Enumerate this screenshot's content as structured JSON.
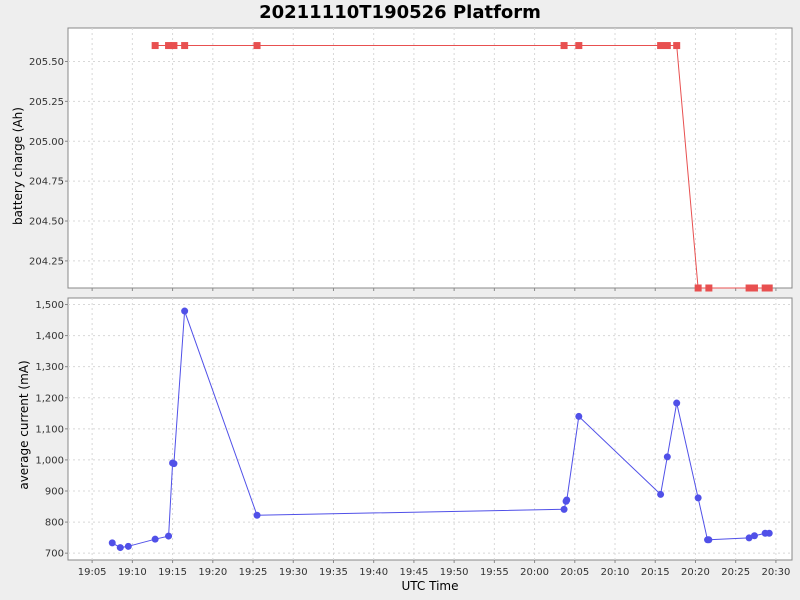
{
  "chart_data": {
    "title": "20211110T190526 Platform",
    "xlabel": "UTC Time",
    "x_range": [
      "19:02",
      "20:32"
    ],
    "x_ticks": [
      "19:05",
      "19:10",
      "19:15",
      "19:20",
      "19:25",
      "19:30",
      "19:35",
      "19:40",
      "19:45",
      "19:50",
      "19:55",
      "20:00",
      "20:05",
      "20:10",
      "20:15",
      "20:20",
      "20:25",
      "20:30"
    ],
    "grid": true,
    "panels": [
      {
        "type": "line",
        "ylabel": "battery charge (Ah)",
        "ylim": [
          204.08,
          205.71
        ],
        "y_ticks": [
          "204.25",
          "204.50",
          "204.75",
          "205.00",
          "205.25",
          "205.50"
        ],
        "series": [
          {
            "color": "#e85050",
            "marker": "square",
            "x": [
              "19:12:50",
              "19:14:30",
              "19:15:10",
              "19:16:30",
              "19:25:30",
              "20:03:40",
              "20:05:30",
              "20:15:40",
              "20:16:30",
              "20:17:40",
              "20:20:20",
              "20:21:40",
              "20:26:40",
              "20:27:20",
              "20:28:40",
              "20:29:10"
            ],
            "y": [
              205.6,
              205.6,
              205.6,
              205.6,
              205.6,
              205.6,
              205.6,
              205.6,
              205.6,
              205.6,
              204.08,
              204.08,
              204.08,
              204.08,
              204.08,
              204.08
            ]
          }
        ]
      },
      {
        "type": "line",
        "ylabel": "average current (mA)",
        "ylim": [
          678,
          1521
        ],
        "y_ticks": [
          "700",
          "800",
          "900",
          "1,000",
          "1,100",
          "1,200",
          "1,300",
          "1,400",
          "1,500"
        ],
        "series": [
          {
            "color": "#5050e8",
            "marker": "circle",
            "x": [
              "19:07:30",
              "19:08:30",
              "19:09:30",
              "19:12:50",
              "19:14:30",
              "19:15:00",
              "19:15:10",
              "19:16:30",
              "19:25:30",
              "20:03:40",
              "20:03:55",
              "20:04:00",
              "20:05:30",
              "20:15:40",
              "20:16:30",
              "20:17:40",
              "20:20:20",
              "20:21:30",
              "20:21:40",
              "20:26:40",
              "20:27:20",
              "20:28:40",
              "20:29:10"
            ],
            "y": [
              733,
              718,
              722,
              745,
              755,
              990,
              988,
              1479,
              822,
              841,
              867,
              871,
              1140,
              889,
              1010,
              1183,
              878,
              743,
              743,
              749,
              756,
              764,
              764
            ]
          }
        ]
      }
    ]
  }
}
